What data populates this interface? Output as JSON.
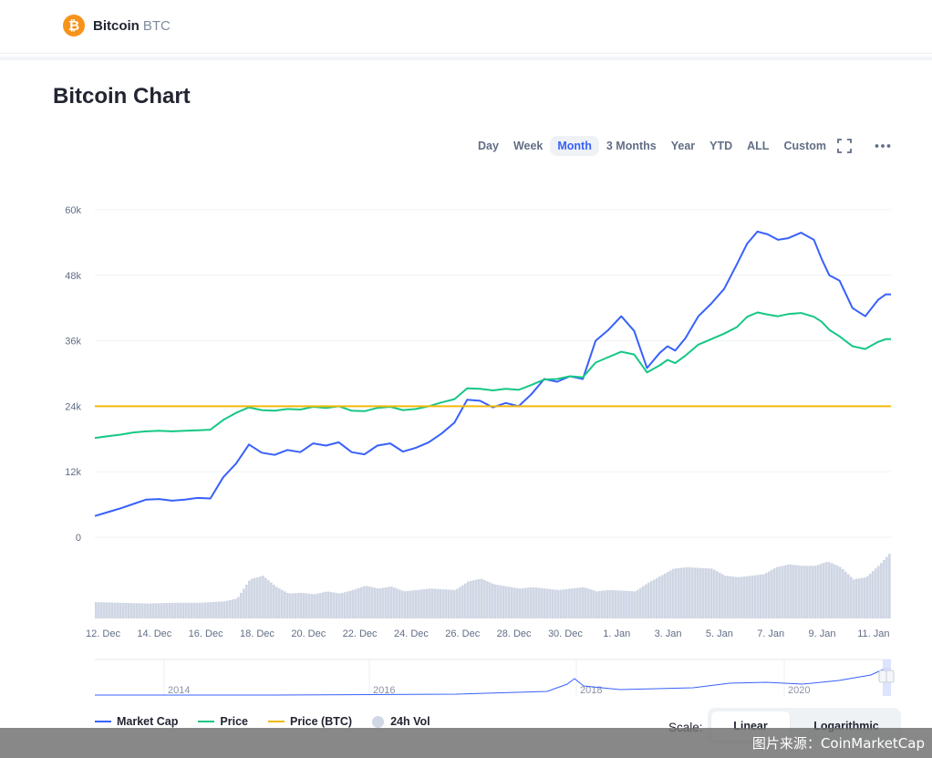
{
  "header": {
    "coin_icon": "bitcoin-icon",
    "coin_icon_glyph": "₿",
    "coin_name": "Bitcoin",
    "coin_symbol": "BTC"
  },
  "chart_section": {
    "title": "Bitcoin Chart",
    "ranges": [
      "Day",
      "Week",
      "Month",
      "3 Months",
      "Year",
      "YTD",
      "ALL",
      "Custom"
    ],
    "active_range": "Month",
    "tools": [
      "fullscreen-icon",
      "more-options-icon"
    ]
  },
  "legend": [
    {
      "label": "Market Cap",
      "color": "#3861fb",
      "type": "line"
    },
    {
      "label": "Price",
      "color": "#16c784",
      "type": "line"
    },
    {
      "label": "Price (BTC)",
      "color": "#f0b90b",
      "type": "line"
    },
    {
      "label": "24h Vol",
      "color": "#cfd6e4",
      "type": "dot"
    }
  ],
  "scale": {
    "label": "Scale:",
    "options": [
      "Linear",
      "Logarithmic"
    ],
    "active": "Linear"
  },
  "watermark": "图片来源：CoinMarketCap",
  "chart_data": {
    "type": "line",
    "ylim": [
      0,
      60000
    ],
    "y_ticks": [
      "0",
      "12k",
      "24k",
      "36k",
      "48k",
      "60k"
    ],
    "y_tick_values": [
      0,
      12000,
      24000,
      36000,
      48000,
      60000
    ],
    "x_ticks": [
      "12. Dec",
      "14. Dec",
      "16. Dec",
      "18. Dec",
      "20. Dec",
      "22. Dec",
      "24. Dec",
      "26. Dec",
      "28. Dec",
      "30. Dec",
      "1. Jan",
      "3. Jan",
      "5. Jan",
      "7. Jan",
      "9. Jan",
      "11. Jan"
    ],
    "x_range": [
      0,
      31
    ],
    "series": [
      {
        "name": "Market Cap",
        "color": "#3861fb",
        "x": [
          0,
          0.5,
          1,
          1.5,
          2,
          2.5,
          3,
          3.5,
          4,
          4.5,
          5,
          5.5,
          6,
          6.5,
          7,
          7.5,
          8,
          8.5,
          9,
          9.5,
          10,
          10.5,
          11,
          11.5,
          12,
          12.5,
          13,
          13.5,
          14,
          14.5,
          15,
          15.5,
          16,
          16.5,
          17,
          17.5,
          18,
          18.5,
          19,
          19.5,
          20,
          20.5,
          21,
          21.5,
          22,
          22.3,
          22.6,
          23,
          23.5,
          24,
          24.5,
          25,
          25.4,
          25.8,
          26.2,
          26.6,
          27,
          27.5,
          28,
          28.3,
          28.6,
          29,
          29.5,
          30,
          30.5,
          30.8,
          31
        ],
        "values": [
          3900,
          4600,
          5300,
          6100,
          6900,
          7000,
          6700,
          6900,
          7200,
          7100,
          11000,
          13500,
          17000,
          15500,
          15100,
          16000,
          15600,
          17200,
          16800,
          17400,
          15600,
          15200,
          16800,
          17200,
          15700,
          16400,
          17400,
          19000,
          21000,
          25200,
          25000,
          23800,
          24600,
          24000,
          26200,
          29000,
          28500,
          29500,
          29000,
          36000,
          38000,
          40500,
          37800,
          31000,
          33800,
          35000,
          34200,
          36500,
          40500,
          42800,
          45500,
          50000,
          53800,
          56000,
          55500,
          54500,
          54800,
          55800,
          54500,
          51000,
          48000,
          47000,
          42000,
          40500,
          43500,
          44500,
          44500
        ]
      },
      {
        "name": "Price",
        "color": "#16c784",
        "x": [
          0,
          0.5,
          1,
          1.5,
          2,
          2.5,
          3,
          3.5,
          4,
          4.5,
          5,
          5.5,
          6,
          6.5,
          7,
          7.5,
          8,
          8.5,
          9,
          9.5,
          10,
          10.5,
          11,
          11.5,
          12,
          12.5,
          13,
          13.5,
          14,
          14.5,
          15,
          15.5,
          16,
          16.5,
          17,
          17.5,
          18,
          18.5,
          19,
          19.5,
          20,
          20.5,
          21,
          21.5,
          22,
          22.3,
          22.6,
          23,
          23.5,
          24,
          24.5,
          25,
          25.4,
          25.8,
          26.2,
          26.6,
          27,
          27.5,
          28,
          28.3,
          28.6,
          29,
          29.5,
          30,
          30.5,
          30.8,
          31
        ],
        "values": [
          18200,
          18500,
          18800,
          19200,
          19400,
          19500,
          19400,
          19500,
          19600,
          19700,
          21500,
          22800,
          23800,
          23300,
          23200,
          23500,
          23400,
          23900,
          23700,
          24000,
          23200,
          23100,
          23700,
          23900,
          23300,
          23500,
          24000,
          24700,
          25300,
          27300,
          27200,
          26900,
          27200,
          27000,
          27900,
          28900,
          29000,
          29500,
          29300,
          32000,
          33000,
          34000,
          33500,
          30200,
          31500,
          32500,
          31900,
          33300,
          35300,
          36300,
          37300,
          38500,
          40400,
          41200,
          40800,
          40500,
          40900,
          41100,
          40400,
          39500,
          38000,
          36800,
          35000,
          34500,
          35800,
          36300,
          36300
        ]
      },
      {
        "name": "Price (BTC)",
        "color": "#f0b90b",
        "x": [
          0,
          31
        ],
        "values": [
          24000,
          24000
        ]
      }
    ],
    "volume": {
      "name": "24h Vol",
      "color": "#cfd6e4",
      "x": [
        0,
        1,
        2,
        3,
        4,
        5,
        5.5,
        6,
        6.5,
        7,
        7.5,
        8,
        8.5,
        9,
        9.5,
        10,
        10.5,
        11,
        11.5,
        12,
        13,
        14,
        14.5,
        15,
        15.5,
        16,
        16.5,
        17,
        18,
        19,
        19.5,
        20,
        21,
        21.5,
        22,
        22.5,
        23,
        24,
        24.5,
        25,
        25.5,
        26,
        26.5,
        27,
        27.5,
        28,
        28.5,
        29,
        29.5,
        30,
        30.5,
        31
      ],
      "values": [
        0.23,
        0.22,
        0.21,
        0.22,
        0.22,
        0.24,
        0.28,
        0.55,
        0.6,
        0.45,
        0.35,
        0.36,
        0.34,
        0.38,
        0.35,
        0.4,
        0.46,
        0.42,
        0.45,
        0.38,
        0.42,
        0.4,
        0.52,
        0.56,
        0.48,
        0.45,
        0.42,
        0.44,
        0.4,
        0.44,
        0.38,
        0.4,
        0.38,
        0.5,
        0.6,
        0.7,
        0.72,
        0.7,
        0.6,
        0.58,
        0.6,
        0.62,
        0.72,
        0.76,
        0.74,
        0.74,
        0.8,
        0.72,
        0.55,
        0.58,
        0.75,
        0.95
      ]
    },
    "navigator": {
      "labels": [
        "2014",
        "2016",
        "2018",
        "2020"
      ]
    }
  }
}
